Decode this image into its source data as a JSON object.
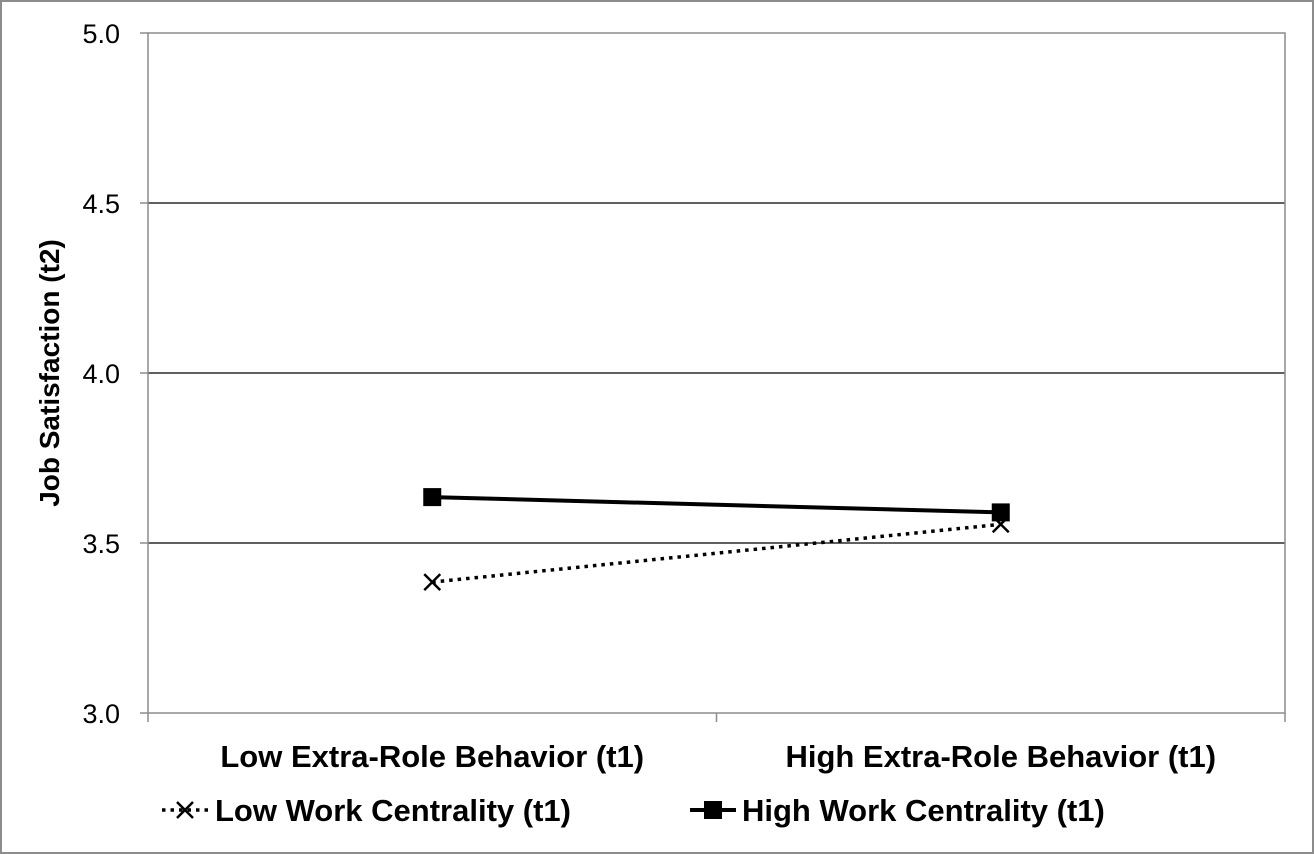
{
  "chart_data": {
    "type": "line",
    "title": "",
    "xlabel": "",
    "ylabel": "Job Satisfaction (t2)",
    "categories": [
      "Low Extra-Role Behavior (t1)",
      "High Extra-Role Behavior (t1)"
    ],
    "ylim": [
      3.0,
      5.0
    ],
    "yticks": [
      "3.0",
      "3.5",
      "4.0",
      "4.5",
      "5.0"
    ],
    "ytick_values": [
      3.0,
      3.5,
      4.0,
      4.5,
      5.0
    ],
    "grid": true,
    "legend_position": "bottom",
    "series": [
      {
        "name": "Low Work Centrality (t1)",
        "values": [
          3.385,
          3.555
        ],
        "style": "dotted",
        "marker": "x",
        "color": "#000000"
      },
      {
        "name": "High Work Centrality (t1)",
        "values": [
          3.635,
          3.59
        ],
        "style": "solid",
        "marker": "square",
        "color": "#000000"
      }
    ]
  }
}
